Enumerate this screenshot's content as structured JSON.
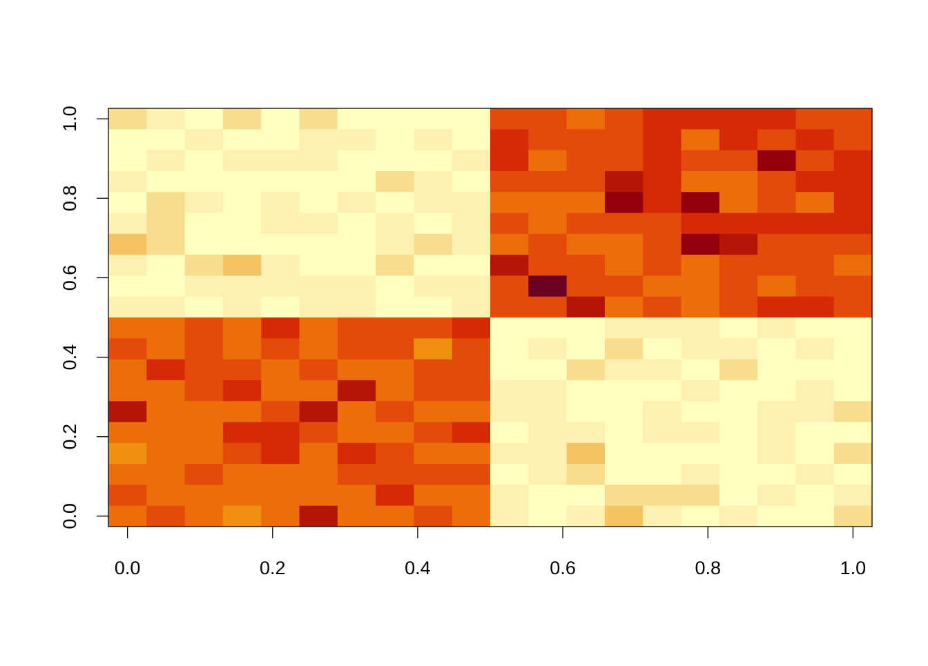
{
  "chart_data": {
    "type": "heatmap",
    "x": [
      0,
      0.0526,
      0.1053,
      0.1579,
      0.2105,
      0.2632,
      0.3158,
      0.3684,
      0.4211,
      0.4737,
      0.5263,
      0.5789,
      0.6316,
      0.6842,
      0.7368,
      0.7895,
      0.8421,
      0.8947,
      0.9474,
      1
    ],
    "y": [
      1,
      0.9474,
      0.8947,
      0.8421,
      0.7895,
      0.7368,
      0.6842,
      0.6316,
      0.5789,
      0.5263,
      0.4737,
      0.4211,
      0.3684,
      0.3158,
      0.2632,
      0.2105,
      0.1579,
      0.1053,
      0.0526,
      0
    ],
    "z": [
      [
        8,
        9,
        10,
        8,
        10,
        8,
        10,
        10,
        10,
        10,
        4,
        4,
        5,
        4,
        3,
        3,
        3,
        3,
        4,
        4
      ],
      [
        10,
        10,
        9,
        10,
        10,
        9,
        9,
        10,
        9,
        10,
        3,
        4,
        4,
        4,
        3,
        5,
        3,
        4,
        3,
        4
      ],
      [
        10,
        9,
        10,
        9,
        9,
        9,
        10,
        10,
        10,
        9,
        3,
        5,
        4,
        4,
        3,
        4,
        4,
        1,
        4,
        3
      ],
      [
        9,
        10,
        10,
        10,
        10,
        10,
        10,
        8,
        9,
        10,
        4,
        4,
        4,
        2,
        3,
        5,
        5,
        4,
        3,
        3
      ],
      [
        10,
        8,
        9,
        10,
        9,
        10,
        9,
        10,
        9,
        9,
        5,
        5,
        5,
        1,
        3,
        1,
        5,
        4,
        5,
        3
      ],
      [
        9,
        8,
        10,
        10,
        9,
        9,
        10,
        9,
        10,
        9,
        4,
        5,
        4,
        4,
        4,
        3,
        3,
        3,
        3,
        3
      ],
      [
        7,
        8,
        10,
        10,
        10,
        10,
        10,
        9,
        8,
        9,
        5,
        4,
        5,
        5,
        4,
        1,
        2,
        4,
        4,
        4
      ],
      [
        9,
        10,
        8,
        7,
        9,
        10,
        10,
        8,
        10,
        10,
        2,
        4,
        4,
        5,
        4,
        5,
        4,
        4,
        4,
        5
      ],
      [
        10,
        10,
        9,
        9,
        9,
        9,
        9,
        10,
        9,
        9,
        4,
        0,
        4,
        4,
        5,
        5,
        4,
        5,
        4,
        4
      ],
      [
        9,
        9,
        10,
        9,
        10,
        9,
        9,
        10,
        10,
        9,
        4,
        4,
        2,
        5,
        4,
        5,
        4,
        3,
        3,
        4
      ],
      [
        5,
        5,
        4,
        5,
        3,
        5,
        4,
        4,
        4,
        3,
        10,
        10,
        10,
        9,
        9,
        9,
        10,
        9,
        10,
        10
      ],
      [
        4,
        5,
        4,
        5,
        4,
        5,
        4,
        4,
        6,
        4,
        10,
        9,
        10,
        8,
        10,
        9,
        9,
        10,
        9,
        10
      ],
      [
        5,
        3,
        4,
        4,
        5,
        4,
        5,
        5,
        4,
        4,
        10,
        10,
        8,
        9,
        9,
        10,
        8,
        10,
        10,
        10
      ],
      [
        5,
        5,
        4,
        3,
        5,
        5,
        2,
        5,
        4,
        4,
        9,
        9,
        10,
        10,
        10,
        9,
        10,
        10,
        9,
        10
      ],
      [
        2,
        5,
        5,
        5,
        4,
        2,
        5,
        4,
        5,
        5,
        9,
        9,
        10,
        10,
        9,
        10,
        10,
        9,
        9,
        8
      ],
      [
        5,
        5,
        5,
        3,
        3,
        4,
        5,
        5,
        4,
        3,
        10,
        9,
        9,
        10,
        9,
        9,
        10,
        9,
        10,
        10
      ],
      [
        6,
        5,
        5,
        4,
        3,
        5,
        3,
        4,
        5,
        5,
        9,
        9,
        7,
        10,
        10,
        10,
        10,
        9,
        10,
        8
      ],
      [
        5,
        5,
        4,
        5,
        5,
        5,
        4,
        4,
        4,
        4,
        10,
        9,
        8,
        10,
        10,
        9,
        10,
        10,
        9,
        10
      ],
      [
        4,
        5,
        5,
        5,
        5,
        5,
        5,
        3,
        5,
        5,
        9,
        10,
        10,
        8,
        8,
        8,
        10,
        9,
        10,
        9
      ],
      [
        5,
        4,
        5,
        6,
        5,
        2,
        5,
        5,
        4,
        5,
        9,
        10,
        9,
        7,
        9,
        10,
        9,
        10,
        10,
        8
      ]
    ],
    "colors": [
      "#6b0023",
      "#940009",
      "#b51507",
      "#d62a06",
      "#e44b0a",
      "#eb6e0a",
      "#ef9010",
      "#f4c463",
      "#f8dd8f",
      "#fdf0b0",
      "#ffffbf"
    ],
    "xlim": [
      -0.0263,
      1.0263
    ],
    "ylim": [
      -0.0263,
      1.0263
    ],
    "xticks": [
      {
        "value": 0,
        "label": "0.0"
      },
      0.2,
      0.4,
      0.6,
      0.8,
      {
        "value": 1,
        "label": "1.0"
      }
    ],
    "yticks": [
      {
        "value": 0,
        "label": "0.0"
      },
      0.2,
      0.4,
      0.6,
      0.8,
      {
        "value": 1,
        "label": "1.0"
      }
    ]
  }
}
